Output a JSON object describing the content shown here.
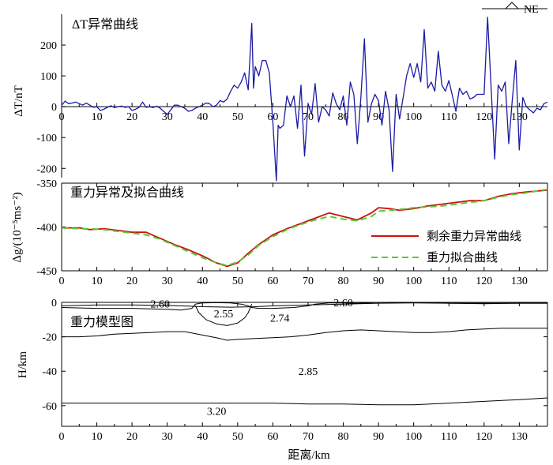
{
  "north_arrow": {
    "label": "NE"
  },
  "chart_data": [
    {
      "type": "line",
      "title": "ΔT异常曲线",
      "ylabel": "ΔT/nT",
      "xlim": [
        0,
        138
      ],
      "ylim": [
        -230,
        300
      ],
      "xticks": [
        0,
        10,
        20,
        30,
        40,
        50,
        60,
        70,
        80,
        90,
        100,
        110,
        120,
        130
      ],
      "yticks": [
        200,
        100,
        0,
        -100,
        -200
      ],
      "color": "#1a1aa6",
      "series": [
        {
          "x": [
            0,
            1,
            2,
            3,
            4,
            5,
            6,
            7,
            8,
            9,
            10,
            11,
            12,
            13,
            14,
            15,
            16,
            17,
            18,
            19,
            20,
            21,
            22,
            23,
            24,
            25,
            26,
            27,
            28,
            29,
            30,
            31,
            32,
            33,
            34,
            35,
            36,
            37,
            38,
            39,
            40,
            41,
            42,
            43,
            44,
            45,
            46,
            47,
            48,
            49,
            50,
            51,
            52,
            53,
            54,
            54.5,
            55,
            56,
            57,
            58,
            59,
            60,
            61,
            61.5,
            62,
            63,
            64,
            65,
            66,
            67,
            68,
            69,
            70,
            71,
            72,
            73,
            74,
            75,
            76,
            77,
            78,
            79,
            80,
            81,
            82,
            83,
            84,
            85,
            86,
            87,
            88,
            89,
            90,
            91,
            92,
            93,
            94,
            95,
            96,
            97,
            98,
            99,
            100,
            101,
            102,
            103,
            104,
            105,
            106,
            107,
            108,
            109,
            110,
            111,
            112,
            113,
            114,
            115,
            116,
            117,
            118,
            119,
            120,
            121,
            122,
            123,
            124,
            125,
            126,
            127,
            128,
            129,
            130,
            131,
            132,
            133,
            134,
            135,
            136,
            137,
            138
          ],
          "y": [
            5,
            18,
            10,
            12,
            15,
            10,
            5,
            12,
            5,
            -2,
            0,
            -12,
            -8,
            -2,
            3,
            -3,
            0,
            2,
            -2,
            0,
            -12,
            -8,
            -2,
            15,
            -2,
            0,
            -3,
            2,
            -5,
            -15,
            -25,
            -10,
            5,
            5,
            0,
            -5,
            -15,
            -12,
            -5,
            0,
            5,
            12,
            10,
            0,
            5,
            20,
            15,
            25,
            50,
            70,
            60,
            80,
            110,
            55,
            270,
            60,
            130,
            100,
            150,
            150,
            110,
            -50,
            -240,
            -60,
            -70,
            -60,
            35,
            0,
            35,
            -70,
            70,
            -160,
            10,
            -25,
            75,
            -50,
            0,
            -10,
            -30,
            45,
            10,
            -10,
            35,
            -60,
            80,
            40,
            -120,
            30,
            220,
            -50,
            10,
            40,
            20,
            -60,
            50,
            -10,
            -210,
            40,
            -40,
            30,
            100,
            140,
            95,
            140,
            80,
            250,
            60,
            80,
            50,
            180,
            70,
            50,
            85,
            35,
            -15,
            60,
            40,
            50,
            25,
            30,
            40,
            40,
            40,
            290,
            60,
            -170,
            70,
            50,
            80,
            -120,
            20,
            150,
            -140,
            30,
            0,
            -10,
            -20,
            -5,
            -10,
            10,
            15
          ]
        }
      ]
    },
    {
      "type": "line",
      "title": "重力异常及拟合曲线",
      "ylabel": "Δg/(10⁻⁵ms⁻²)",
      "xlim": [
        0,
        138
      ],
      "ylim": [
        -450,
        -350
      ],
      "xticks": [
        0,
        10,
        20,
        30,
        40,
        50,
        60,
        70,
        80,
        90,
        100,
        110,
        120,
        130
      ],
      "yticks": [
        -350,
        -400,
        -450
      ],
      "legend": "right",
      "series": [
        {
          "name": "剩余重力异常曲线",
          "color": "#cc1111",
          "x": [
            0,
            5,
            8,
            12,
            16,
            20,
            24,
            28,
            32,
            36,
            40,
            44,
            47,
            50,
            53,
            56,
            60,
            64,
            68,
            72,
            76,
            80,
            84,
            88,
            90,
            93,
            96,
            100,
            104,
            108,
            112,
            116,
            120,
            124,
            128,
            132,
            138
          ],
          "y": [
            -401,
            -401,
            -403,
            -402,
            -404,
            -406,
            -406,
            -413,
            -420,
            -426,
            -433,
            -441,
            -445,
            -441,
            -430,
            -420,
            -409,
            -402,
            -396,
            -390,
            -384,
            -388,
            -392,
            -384,
            -378,
            -379,
            -381,
            -379,
            -376,
            -374,
            -372,
            -370,
            -370,
            -365,
            -362,
            -360,
            -358
          ]
        },
        {
          "name": "重力拟合曲线",
          "color": "#55cc33",
          "x": [
            0,
            5,
            8,
            12,
            16,
            20,
            24,
            28,
            32,
            36,
            40,
            44,
            47,
            50,
            53,
            56,
            60,
            64,
            68,
            72,
            76,
            80,
            84,
            88,
            90,
            93,
            96,
            100,
            104,
            108,
            112,
            116,
            120,
            124,
            128,
            132,
            138
          ],
          "y": [
            -401,
            -402,
            -402,
            -403,
            -405,
            -407,
            -409,
            -414,
            -421,
            -428,
            -435,
            -441,
            -444,
            -440,
            -432,
            -421,
            -411,
            -403,
            -397,
            -392,
            -388,
            -391,
            -393,
            -388,
            -382,
            -381,
            -380,
            -378,
            -377,
            -376,
            -374,
            -372,
            -370,
            -366,
            -363,
            -361,
            -357
          ]
        }
      ]
    },
    {
      "type": "line",
      "title": "重力模型图",
      "xlabel": "距离/km",
      "ylabel": "H/km",
      "xlim": [
        0,
        138
      ],
      "ylim": [
        -72,
        0
      ],
      "xticks": [
        0,
        10,
        20,
        30,
        40,
        50,
        60,
        70,
        80,
        90,
        100,
        110,
        120,
        130
      ],
      "yticks": [
        0,
        -20,
        -40,
        -60
      ],
      "series": [
        {
          "x": [
            0,
            10,
            20,
            30,
            36,
            40,
            48,
            55,
            60,
            70,
            80,
            90,
            100,
            110,
            120,
            130,
            138
          ],
          "y": [
            -2,
            -1.5,
            -1.5,
            -1.8,
            -2.2,
            -2.5,
            -2.8,
            -2.5,
            -2,
            -1.5,
            -1,
            -0.5,
            -0.3,
            -0.5,
            -0.8,
            -0.5,
            -0.5
          ]
        },
        {
          "x": [
            0,
            10,
            20,
            30,
            34,
            37,
            38,
            40,
            44,
            48,
            51,
            53,
            54,
            56,
            60,
            66,
            70,
            72,
            76,
            80,
            84,
            90,
            100,
            110,
            120,
            130,
            138
          ],
          "y": [
            -3,
            -3.5,
            -3.5,
            -4,
            -4.5,
            -3.5,
            -1,
            -0.3,
            -0.2,
            -0.3,
            -1,
            -2,
            -3,
            -3.5,
            -3.5,
            -3,
            -2,
            -1,
            -0.3,
            -0.3,
            -0.5,
            0,
            0,
            -0.5,
            -0.5,
            -0.5,
            -0.5
          ]
        },
        {
          "x": [
            38,
            39,
            41,
            44,
            47,
            50,
            52,
            53,
            54
          ],
          "y": [
            -2,
            -6,
            -10,
            -12.5,
            -13.5,
            -12,
            -9,
            -6,
            -1
          ]
        },
        {
          "x": [
            0,
            5,
            10,
            15,
            20,
            25,
            30,
            35,
            40,
            45,
            47,
            50,
            55,
            60,
            65,
            70,
            75,
            80,
            85,
            90,
            95,
            100,
            105,
            110,
            115,
            120,
            125,
            130,
            138
          ],
          "y": [
            -20,
            -20,
            -19.5,
            -18.5,
            -18,
            -17.5,
            -17,
            -17,
            -19,
            -21,
            -22,
            -21.5,
            -21,
            -20.5,
            -20,
            -19,
            -17.5,
            -16.5,
            -16,
            -16.5,
            -17,
            -17.5,
            -17.5,
            -17,
            -16,
            -15.5,
            -15,
            -15,
            -15
          ]
        },
        {
          "x": [
            0,
            10,
            20,
            30,
            40,
            50,
            60,
            70,
            80,
            90,
            100,
            110,
            120,
            130,
            138
          ],
          "y": [
            -58.5,
            -58.5,
            -58.5,
            -58.5,
            -58.5,
            -58.5,
            -58.5,
            -59,
            -59,
            -59.5,
            -59.5,
            -58.5,
            -57.5,
            -56.5,
            -55.5
          ]
        }
      ],
      "annotations": [
        {
          "text": "2.60",
          "x": 28,
          "y": -0.8
        },
        {
          "text": "2.55",
          "x": 46,
          "y": -6.5
        },
        {
          "text": "2.74",
          "x": 62,
          "y": -9
        },
        {
          "text": "2.60",
          "x": 80,
          "y": 0
        },
        {
          "text": "2.85",
          "x": 70,
          "y": -40
        },
        {
          "text": "3.20",
          "x": 44,
          "y": -63
        }
      ]
    }
  ]
}
